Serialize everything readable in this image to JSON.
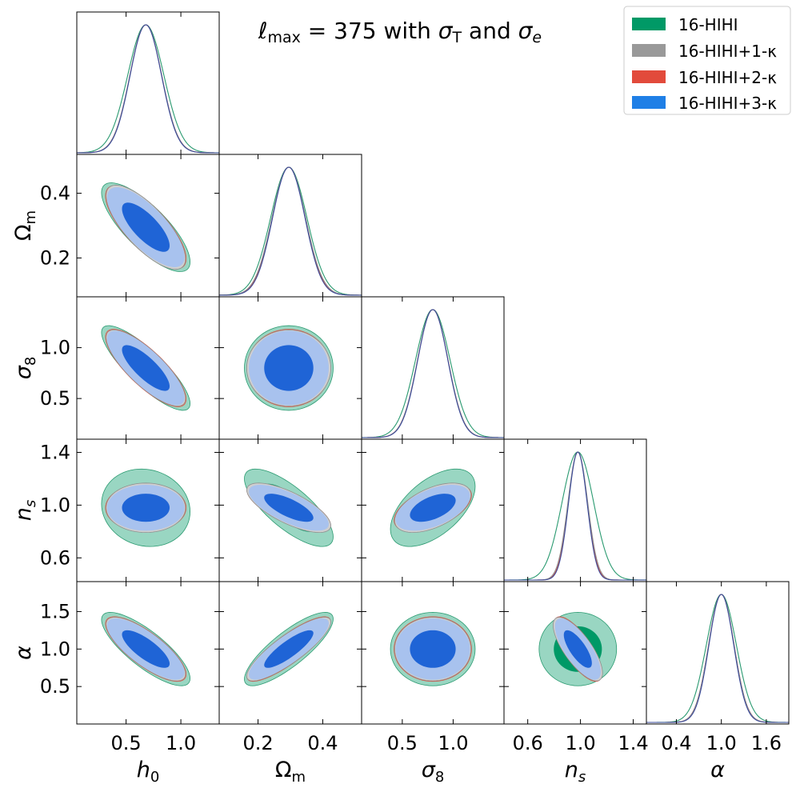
{
  "chart_data": {
    "type": "corner",
    "title": "ℓmax = 375 with σT and σe",
    "title_parts": {
      "ell": "ℓ",
      "max": "max",
      "eq": " = 375 with ",
      "s1": "σ",
      "T": "T",
      "and": " and ",
      "s2": "σ",
      "e": "e"
    },
    "legend": [
      {
        "name": "16-HIHI",
        "color": "#009966"
      },
      {
        "name": "16-HIHI+1-κ",
        "color": "#999999"
      },
      {
        "name": "16-HIHI+2-κ",
        "color": "#e24a3b"
      },
      {
        "name": "16-HIHI+3-κ",
        "color": "#1f7fe6"
      }
    ],
    "colors": {
      "green_outer": "#99d6c2",
      "green_inner": "#009966",
      "green_line": "#2a9a70",
      "grey_outer": "#cfcfcf",
      "grey_inner": "#8f8f8f",
      "red_outer": "#f3c0bb",
      "red_inner": "#e24a3b",
      "blue_outer": "#a8c2ee",
      "blue_inner": "#1f64d6",
      "blue_line": "#3a4a9a"
    },
    "parameters": [
      {
        "key": "h0",
        "label": "h",
        "sub": "0",
        "range": [
          0.05,
          1.35
        ],
        "mean": 0.68,
        "ticks": [
          {
            "v": 0.5,
            "t": "0.5"
          },
          {
            "v": 1.0,
            "t": "1.0"
          }
        ],
        "sigma": {
          "green": 0.165,
          "grey": 0.145,
          "red": 0.145,
          "blue": 0.143
        }
      },
      {
        "key": "Om",
        "label": "Ω",
        "sub": "m",
        "range": [
          0.08,
          0.52
        ],
        "mean": 0.295,
        "ticks": [
          {
            "v": 0.2,
            "t": "0.2"
          },
          {
            "v": 0.4,
            "t": "0.4"
          }
        ],
        "sigma": {
          "green": 0.056,
          "grey": 0.052,
          "red": 0.051,
          "blue": 0.05
        }
      },
      {
        "key": "s8",
        "label": "σ",
        "sub": "8",
        "range": [
          0.1,
          1.5
        ],
        "mean": 0.8,
        "ticks": [
          {
            "v": 0.5,
            "t": "0.5"
          },
          {
            "v": 1.0,
            "t": "1.0"
          }
        ],
        "sigma": {
          "green": 0.17,
          "grey": 0.15,
          "red": 0.15,
          "blue": 0.148
        }
      },
      {
        "key": "ns",
        "label": "n",
        "sub": "s",
        "range": [
          0.42,
          1.5
        ],
        "mean": 0.98,
        "ticks": [
          {
            "v": 0.6,
            "t": "0.6"
          },
          {
            "v": 1.0,
            "t": "1.0"
          },
          {
            "v": 1.4,
            "t": "1.4"
          }
        ],
        "sigma": {
          "green": 0.12,
          "grey": 0.075,
          "red": 0.072,
          "blue": 0.07
        }
      },
      {
        "key": "alpha",
        "label": "α",
        "sub": "",
        "range": [
          0.0,
          1.9
        ],
        "mean": 1.0,
        "ticks": [
          {
            "v": 0.5,
            "t": "0.5"
          },
          {
            "v": 1.0,
            "t": "1.0"
          },
          {
            "v": 1.5,
            "t": "1.5"
          }
        ],
        "xticks": [
          {
            "v": 0.4,
            "t": "0.4"
          },
          {
            "v": 1.0,
            "t": "1.0"
          },
          {
            "v": 1.6,
            "t": "1.6"
          }
        ],
        "sigma": {
          "green": 0.2,
          "grey": 0.17,
          "red": 0.17,
          "blue": 0.165
        }
      }
    ],
    "correlations": {
      "Om|h0": {
        "green": -0.78,
        "blue": -0.75
      },
      "s8|h0": {
        "green": -0.84,
        "blue": -0.8
      },
      "s8|Om": {
        "green": 0.0,
        "blue": 0.0
      },
      "ns|h0": {
        "green": -0.1,
        "blue": 0.0
      },
      "ns|Om": {
        "green": -0.75,
        "blue": -0.72
      },
      "ns|s8": {
        "green": 0.55,
        "blue": 0.52
      },
      "alpha|h0": {
        "green": -0.8,
        "blue": -0.78
      },
      "alpha|Om": {
        "green": 0.82,
        "blue": 0.85
      },
      "alpha|s8": {
        "green": 0.0,
        "blue": 0.0
      },
      "alpha|ns": {
        "green": 0.0,
        "blue": -0.75
      }
    },
    "ylabels_rows": [
      "Om",
      "s8",
      "ns",
      "alpha"
    ],
    "xlabels_cols": [
      "h0",
      "Om",
      "s8",
      "ns",
      "alpha"
    ]
  }
}
